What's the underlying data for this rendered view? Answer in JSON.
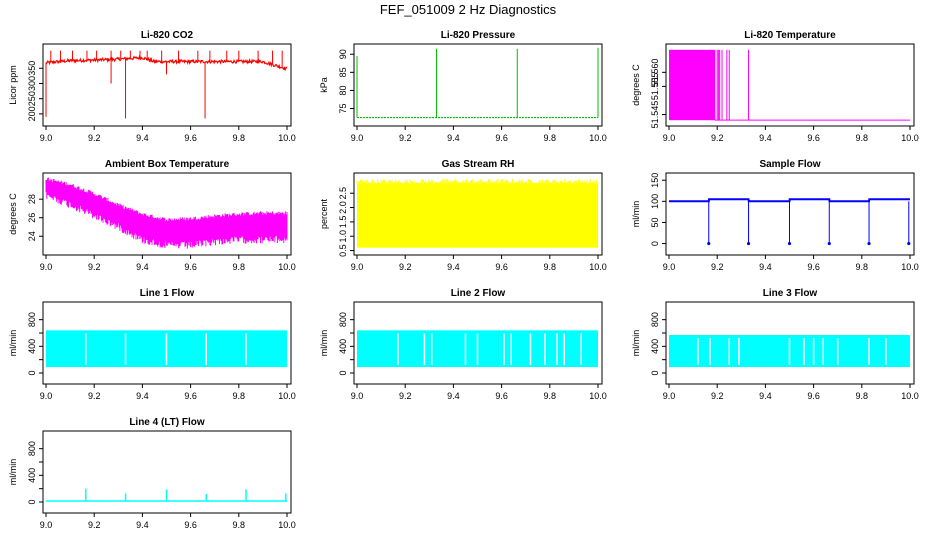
{
  "main_title": "FEF_051009  2 Hz Diagnostics",
  "chart_data": [
    {
      "type": "line",
      "title": "Li-820 CO2",
      "ylabel": "Licor ppm",
      "color": "#ff0000",
      "xlim": [
        9.0,
        10.0
      ],
      "ylim": [
        170,
        420
      ],
      "xticks": [
        "9.0",
        "9.2",
        "9.4",
        "9.6",
        "9.8",
        "10.0"
      ],
      "yticks": [
        200,
        250,
        300,
        350
      ],
      "ytick_labels": [
        "200",
        "250",
        "300",
        "350"
      ],
      "series": [
        {
          "name": "CO2",
          "x": [
            9.0,
            9.1,
            9.2,
            9.3,
            9.4,
            9.45,
            9.5,
            9.6,
            9.7,
            9.8,
            9.9,
            10.0
          ],
          "y": [
            368,
            375,
            377,
            380,
            385,
            372,
            372,
            372,
            372,
            372,
            372,
            348
          ]
        }
      ],
      "spikes_up_x": [
        9.02,
        9.06,
        9.11,
        9.17,
        9.21,
        9.27,
        9.31,
        9.35,
        9.39,
        9.42,
        9.48,
        9.55,
        9.63,
        9.68,
        9.75,
        9.8,
        9.88,
        9.94,
        9.98
      ],
      "spikes_down": [
        {
          "x": 9.0,
          "y": 190
        },
        {
          "x": 9.33,
          "y": 185
        },
        {
          "x": 9.66,
          "y": 185
        },
        {
          "x": 9.27,
          "y": 300
        },
        {
          "x": 9.5,
          "y": 330
        }
      ]
    },
    {
      "type": "line",
      "title": "Li-820 Pressure",
      "ylabel": "kPa",
      "color": "#00c000",
      "xlim": [
        9.0,
        10.0
      ],
      "ylim": [
        71,
        92
      ],
      "xticks": [
        "9.0",
        "9.2",
        "9.4",
        "9.6",
        "9.8",
        "10.0"
      ],
      "yticks": [
        75,
        80,
        85,
        90
      ],
      "ytick_labels": [
        "75",
        "80",
        "85",
        "90"
      ],
      "baseline": 72.5,
      "spikes_up": [
        {
          "x": 9.0,
          "y": 89.5
        },
        {
          "x": 9.33,
          "y": 91.5
        },
        {
          "x": 9.665,
          "y": 91.5
        },
        {
          "x": 10.0,
          "y": 91.8
        }
      ]
    },
    {
      "type": "line",
      "title": "Li-820 Temperature",
      "ylabel": "degrees C",
      "color": "#ff00ff",
      "xlim": [
        9.0,
        10.0
      ],
      "ylim": [
        51.542,
        51.569
      ],
      "xticks": [
        "9.0",
        "9.2",
        "9.4",
        "9.6",
        "9.8",
        "10.0"
      ],
      "yticks": [
        51.545,
        51.555,
        51.56
      ],
      "ytick_labels": [
        "51.545",
        "51.555",
        "51.560"
      ],
      "filled_band": {
        "x_start": 9.0,
        "x_end": 9.19,
        "low": 51.543,
        "high": 51.568
      },
      "bars_x": [
        9.19,
        9.2,
        9.205,
        9.21,
        9.22,
        9.24,
        9.25,
        9.33
      ],
      "baseline": 51.543
    },
    {
      "type": "line",
      "title": "Ambient Box Temperature",
      "ylabel": "degrees C",
      "color": "#ff00ff",
      "xlim": [
        9.0,
        10.0
      ],
      "ylim": [
        22.3,
        30.5
      ],
      "xticks": [
        "9.0",
        "9.2",
        "9.4",
        "9.6",
        "9.8",
        "10.0"
      ],
      "yticks": [
        24,
        26,
        28
      ],
      "ytick_labels": [
        "24",
        "26",
        "28"
      ],
      "upper": {
        "x": [
          9.0,
          9.1,
          9.2,
          9.3,
          9.4,
          9.5,
          9.6,
          9.7,
          9.8,
          9.9,
          10.0
        ],
        "y": [
          30.2,
          29.6,
          28.6,
          27.4,
          26.4,
          25.8,
          25.9,
          26.2,
          26.4,
          26.5,
          26.5
        ]
      },
      "lower": {
        "x": [
          9.0,
          9.1,
          9.2,
          9.3,
          9.4,
          9.5,
          9.6,
          9.7,
          9.8,
          9.9,
          10.0
        ],
        "y": [
          28.8,
          27.8,
          26.6,
          25.4,
          24.0,
          23.4,
          23.4,
          23.8,
          24.0,
          24.0,
          24.0
        ]
      }
    },
    {
      "type": "line",
      "title": "Gas Stream RH",
      "ylabel": "percent",
      "color": "#ffff00",
      "xlim": [
        9.0,
        10.0
      ],
      "ylim": [
        0.45,
        3.1
      ],
      "xticks": [
        "9.0",
        "9.2",
        "9.4",
        "9.6",
        "9.8",
        "10.0"
      ],
      "yticks": [
        0.5,
        1.0,
        1.5,
        2.0,
        2.5
      ],
      "ytick_labels": [
        "0.5",
        "1.0",
        "1.5",
        "2.0",
        "2.5"
      ],
      "band": {
        "low": 0.6,
        "high": 2.85
      }
    },
    {
      "type": "line",
      "title": "Sample Flow",
      "ylabel": "ml/min",
      "color": "#0000ff",
      "xlim": [
        9.0,
        10.0
      ],
      "ylim": [
        -20,
        160
      ],
      "xticks": [
        "9.0",
        "9.2",
        "9.4",
        "9.6",
        "9.8",
        "10.0"
      ],
      "yticks": [
        0,
        50,
        100,
        150
      ],
      "ytick_labels": [
        "0",
        "50",
        "100",
        "150"
      ],
      "series": [
        {
          "name": "Sample Flow",
          "x": [
            9.0,
            9.165,
            9.166,
            9.33,
            9.331,
            9.5,
            9.501,
            9.665,
            9.666,
            9.83,
            9.831,
            10.0
          ],
          "y": [
            100,
            100,
            105,
            105,
            100,
            100,
            105,
            105,
            100,
            100,
            105,
            105
          ]
        }
      ],
      "dips_x": [
        9.165,
        9.33,
        9.5,
        9.665,
        9.83,
        9.995
      ]
    },
    {
      "type": "area",
      "title": "Line 1 Flow",
      "ylabel": "ml/min",
      "color": "#00ffff",
      "xlim": [
        9.0,
        10.0
      ],
      "ylim": [
        -120,
        1020
      ],
      "xticks": [
        "9.0",
        "9.2",
        "9.4",
        "9.6",
        "9.8",
        "10.0"
      ],
      "yticks": [
        0,
        200,
        400,
        600,
        800
      ],
      "ytick_labels": [
        "0",
        "",
        "400",
        "",
        "800"
      ],
      "band": {
        "low": 90,
        "high": 640
      },
      "gaps_x": [
        9.165,
        9.33,
        9.5,
        9.665,
        9.83
      ]
    },
    {
      "type": "area",
      "title": "Line 2 Flow",
      "ylabel": "ml/min",
      "color": "#00ffff",
      "xlim": [
        9.0,
        10.0
      ],
      "ylim": [
        -120,
        1020
      ],
      "xticks": [
        "9.0",
        "9.2",
        "9.4",
        "9.6",
        "9.8",
        "10.0"
      ],
      "yticks": [
        0,
        200,
        400,
        600,
        800
      ],
      "ytick_labels": [
        "0",
        "",
        "400",
        "",
        "800"
      ],
      "band": {
        "low": 90,
        "high": 640
      },
      "gaps_x": [
        9.17,
        9.28,
        9.31,
        9.45,
        9.5,
        9.61,
        9.64,
        9.72,
        9.78,
        9.83,
        9.86,
        9.93
      ]
    },
    {
      "type": "area",
      "title": "Line 3 Flow",
      "ylabel": "ml/min",
      "color": "#00ffff",
      "xlim": [
        9.0,
        10.0
      ],
      "ylim": [
        -120,
        1020
      ],
      "xticks": [
        "9.0",
        "9.2",
        "9.4",
        "9.6",
        "9.8",
        "10.0"
      ],
      "yticks": [
        0,
        200,
        400,
        600,
        800
      ],
      "ytick_labels": [
        "0",
        "",
        "400",
        "",
        "800"
      ],
      "band": {
        "low": 90,
        "high": 570
      },
      "gaps_x": [
        9.12,
        9.17,
        9.25,
        9.29,
        9.5,
        9.56,
        9.6,
        9.64,
        9.7,
        9.83,
        9.9
      ]
    },
    {
      "type": "line",
      "title": "Line 4 (LT) Flow",
      "ylabel": "ml/min",
      "color": "#00ffff",
      "xlim": [
        9.0,
        10.0
      ],
      "ylim": [
        -120,
        1020
      ],
      "xticks": [
        "9.0",
        "9.2",
        "9.4",
        "9.6",
        "9.8",
        "10.0"
      ],
      "yticks": [
        0,
        200,
        400,
        600,
        800
      ],
      "ytick_labels": [
        "0",
        "",
        "400",
        "",
        "800"
      ],
      "baseline": 15,
      "spikes": [
        {
          "x": 9.165,
          "y": 200
        },
        {
          "x": 9.33,
          "y": 130
        },
        {
          "x": 9.5,
          "y": 190
        },
        {
          "x": 9.665,
          "y": 120
        },
        {
          "x": 9.83,
          "y": 190
        },
        {
          "x": 9.995,
          "y": 130
        }
      ]
    }
  ]
}
